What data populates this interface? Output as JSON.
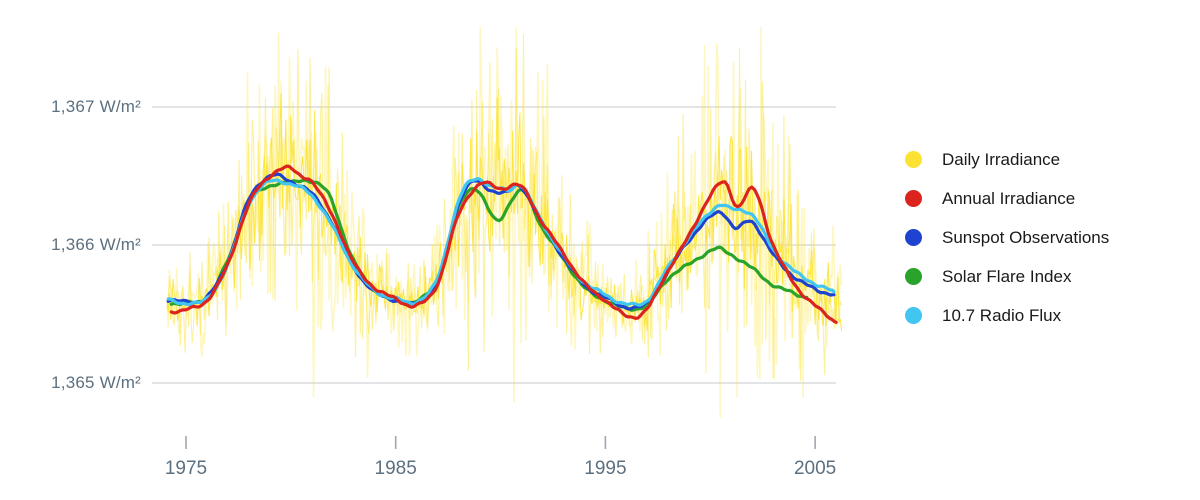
{
  "chart_data": {
    "type": "line",
    "title": "",
    "x_axis": {
      "range": [
        1974.1,
        2006.3
      ],
      "ticks": [
        {
          "value": 1975,
          "label": "1975"
        },
        {
          "value": 1985,
          "label": "1985"
        },
        {
          "value": 1995,
          "label": "1995"
        },
        {
          "value": 2005,
          "label": "2005"
        }
      ]
    },
    "y_axis": {
      "range": [
        1364.45,
        1367.65
      ],
      "grid": true,
      "ticks": [
        {
          "value": 1367,
          "label": "1,367 W/m²"
        },
        {
          "value": 1366,
          "label": "1,366 W/m²"
        },
        {
          "value": 1365,
          "label": "1,365 W/m²"
        }
      ]
    },
    "series": [
      {
        "name": "Daily Irradiance",
        "color": "#FCE333",
        "style": "noisy-band",
        "envelope": [
          [
            1974.1,
            1365.58,
            0.28
          ],
          [
            1975,
            1365.57,
            0.3
          ],
          [
            1976,
            1365.6,
            0.36
          ],
          [
            1977,
            1365.86,
            0.55
          ],
          [
            1978,
            1366.28,
            0.85
          ],
          [
            1979,
            1366.47,
            1.0
          ],
          [
            1980,
            1366.5,
            1.05
          ],
          [
            1981,
            1366.42,
            1.05
          ],
          [
            1982,
            1366.15,
            0.95
          ],
          [
            1983,
            1365.88,
            0.62
          ],
          [
            1984,
            1365.68,
            0.42
          ],
          [
            1985,
            1365.6,
            0.28
          ],
          [
            1986,
            1365.58,
            0.28
          ],
          [
            1987,
            1365.74,
            0.52
          ],
          [
            1988,
            1366.24,
            0.85
          ],
          [
            1989,
            1366.44,
            1.1
          ],
          [
            1990,
            1366.4,
            1.1
          ],
          [
            1991,
            1366.4,
            1.02
          ],
          [
            1992,
            1366.15,
            0.92
          ],
          [
            1993,
            1365.9,
            0.65
          ],
          [
            1994,
            1365.7,
            0.48
          ],
          [
            1995,
            1365.6,
            0.32
          ],
          [
            1996,
            1365.53,
            0.26
          ],
          [
            1997,
            1365.58,
            0.36
          ],
          [
            1998,
            1365.94,
            0.72
          ],
          [
            1999,
            1366.06,
            0.85
          ],
          [
            2000,
            1366.3,
            0.95
          ],
          [
            2001,
            1366.27,
            1.1
          ],
          [
            2002,
            1366.28,
            1.1
          ],
          [
            2003,
            1366.0,
            1.15
          ],
          [
            2004,
            1365.8,
            0.8
          ],
          [
            2005,
            1365.66,
            0.55
          ],
          [
            2006.1,
            1365.55,
            0.36
          ]
        ]
      },
      {
        "name": "Annual Irradiance",
        "color": "#DC241F",
        "style": "line",
        "points": [
          [
            1974.3,
            1365.52
          ],
          [
            1975,
            1365.53
          ],
          [
            1976,
            1365.6
          ],
          [
            1977,
            1365.86
          ],
          [
            1978,
            1366.3
          ],
          [
            1979,
            1366.5
          ],
          [
            1979.8,
            1366.56
          ],
          [
            1980.5,
            1366.5
          ],
          [
            1981,
            1366.46
          ],
          [
            1982,
            1366.21
          ],
          [
            1983,
            1365.87
          ],
          [
            1984,
            1365.69
          ],
          [
            1985,
            1365.61
          ],
          [
            1986,
            1365.56
          ],
          [
            1987,
            1365.72
          ],
          [
            1988,
            1366.22
          ],
          [
            1989,
            1366.44
          ],
          [
            1990,
            1366.41
          ],
          [
            1991,
            1366.42
          ],
          [
            1992,
            1366.16
          ],
          [
            1993,
            1365.94
          ],
          [
            1994,
            1365.72
          ],
          [
            1995,
            1365.6
          ],
          [
            1996.1,
            1365.48
          ],
          [
            1997,
            1365.54
          ],
          [
            1998,
            1365.82
          ],
          [
            1999,
            1366.07
          ],
          [
            2000,
            1366.36
          ],
          [
            2000.7,
            1366.45
          ],
          [
            2001.3,
            1366.28
          ],
          [
            2002.1,
            1366.4
          ],
          [
            2003,
            1366.0
          ],
          [
            2004,
            1365.72
          ],
          [
            2005,
            1365.56
          ],
          [
            2006,
            1365.44
          ]
        ]
      },
      {
        "name": "Sunspot Observations",
        "color": "#1E43D0",
        "style": "line",
        "points": [
          [
            1974.15,
            1365.6
          ],
          [
            1975,
            1365.59
          ],
          [
            1976,
            1365.62
          ],
          [
            1977,
            1365.88
          ],
          [
            1978,
            1366.33
          ],
          [
            1979,
            1366.5
          ],
          [
            1980,
            1366.46
          ],
          [
            1981,
            1366.37
          ],
          [
            1982,
            1366.15
          ],
          [
            1983,
            1365.84
          ],
          [
            1984,
            1365.66
          ],
          [
            1985,
            1365.6
          ],
          [
            1986,
            1365.58
          ],
          [
            1987,
            1365.75
          ],
          [
            1988,
            1366.3
          ],
          [
            1988.7,
            1366.46
          ],
          [
            1989.5,
            1366.4
          ],
          [
            1990.3,
            1366.38
          ],
          [
            1991,
            1366.42
          ],
          [
            1992,
            1366.15
          ],
          [
            1993,
            1365.91
          ],
          [
            1994,
            1365.71
          ],
          [
            1995,
            1365.62
          ],
          [
            1996,
            1365.55
          ],
          [
            1997,
            1365.58
          ],
          [
            1998,
            1365.81
          ],
          [
            1999,
            1366.04
          ],
          [
            2000.4,
            1366.24
          ],
          [
            2001.2,
            1366.12
          ],
          [
            2002,
            1366.17
          ],
          [
            2003,
            1365.93
          ],
          [
            2004,
            1365.77
          ],
          [
            2005,
            1365.68
          ],
          [
            2005.9,
            1365.64
          ]
        ]
      },
      {
        "name": "Solar Flare Index",
        "color": "#2AA32A",
        "style": "line",
        "points": [
          [
            1974.3,
            1365.58
          ],
          [
            1975,
            1365.58
          ],
          [
            1976,
            1365.62
          ],
          [
            1977,
            1365.89
          ],
          [
            1978,
            1366.3
          ],
          [
            1979,
            1366.43
          ],
          [
            1980,
            1366.45
          ],
          [
            1980.8,
            1366.47
          ],
          [
            1981.8,
            1366.37
          ],
          [
            1982.5,
            1366.08
          ],
          [
            1983,
            1365.88
          ],
          [
            1984,
            1365.67
          ],
          [
            1985,
            1365.6
          ],
          [
            1986,
            1365.59
          ],
          [
            1987,
            1365.76
          ],
          [
            1988,
            1366.27
          ],
          [
            1988.8,
            1366.41
          ],
          [
            1989.8,
            1366.18
          ],
          [
            1990.6,
            1366.34
          ],
          [
            1991.2,
            1366.38
          ],
          [
            1992,
            1366.12
          ],
          [
            1993,
            1365.9
          ],
          [
            1994,
            1365.69
          ],
          [
            1995,
            1365.6
          ],
          [
            1996,
            1365.54
          ],
          [
            1997,
            1365.57
          ],
          [
            1998,
            1365.76
          ],
          [
            1999,
            1365.86
          ],
          [
            2000.2,
            1365.97
          ],
          [
            2001,
            1365.93
          ],
          [
            2002,
            1365.83
          ],
          [
            2003,
            1365.71
          ],
          [
            2004,
            1365.65
          ],
          [
            2004.6,
            1365.62
          ]
        ]
      },
      {
        "name": "10.7 Radio Flux",
        "color": "#41C5F1",
        "style": "line",
        "points": [
          [
            1974.15,
            1365.6
          ],
          [
            1975,
            1365.58
          ],
          [
            1976,
            1365.61
          ],
          [
            1977,
            1365.86
          ],
          [
            1978,
            1366.3
          ],
          [
            1979,
            1366.46
          ],
          [
            1980,
            1366.44
          ],
          [
            1981,
            1366.36
          ],
          [
            1982,
            1366.13
          ],
          [
            1983,
            1365.84
          ],
          [
            1984,
            1365.67
          ],
          [
            1985,
            1365.61
          ],
          [
            1986,
            1365.59
          ],
          [
            1987,
            1365.76
          ],
          [
            1988,
            1366.32
          ],
          [
            1988.8,
            1366.48
          ],
          [
            1989.6,
            1366.42
          ],
          [
            1990.4,
            1366.4
          ],
          [
            1991,
            1366.43
          ],
          [
            1992,
            1366.16
          ],
          [
            1993,
            1365.92
          ],
          [
            1994,
            1365.73
          ],
          [
            1995,
            1365.64
          ],
          [
            1996,
            1365.57
          ],
          [
            1997,
            1365.6
          ],
          [
            1998,
            1365.84
          ],
          [
            1999,
            1366.06
          ],
          [
            2000.3,
            1366.28
          ],
          [
            2001,
            1366.26
          ],
          [
            2002,
            1366.22
          ],
          [
            2003,
            1365.97
          ],
          [
            2004,
            1365.81
          ],
          [
            2005,
            1365.72
          ],
          [
            2005.9,
            1365.66
          ]
        ]
      }
    ],
    "legend_position": "right",
    "colors": {
      "grid": "#D8DCDE",
      "tick": "#9FA8B0",
      "axis_text": "#5C7080",
      "legend_text": "#1A1A1A"
    }
  },
  "legend": {
    "items": [
      {
        "label": "Daily Irradiance",
        "color": "#FCE333"
      },
      {
        "label": "Annual Irradiance",
        "color": "#DC241F"
      },
      {
        "label": "Sunspot Observations",
        "color": "#1E43D0"
      },
      {
        "label": "Solar Flare Index",
        "color": "#2AA32A"
      },
      {
        "label": "10.7 Radio Flux",
        "color": "#41C5F1"
      }
    ]
  }
}
